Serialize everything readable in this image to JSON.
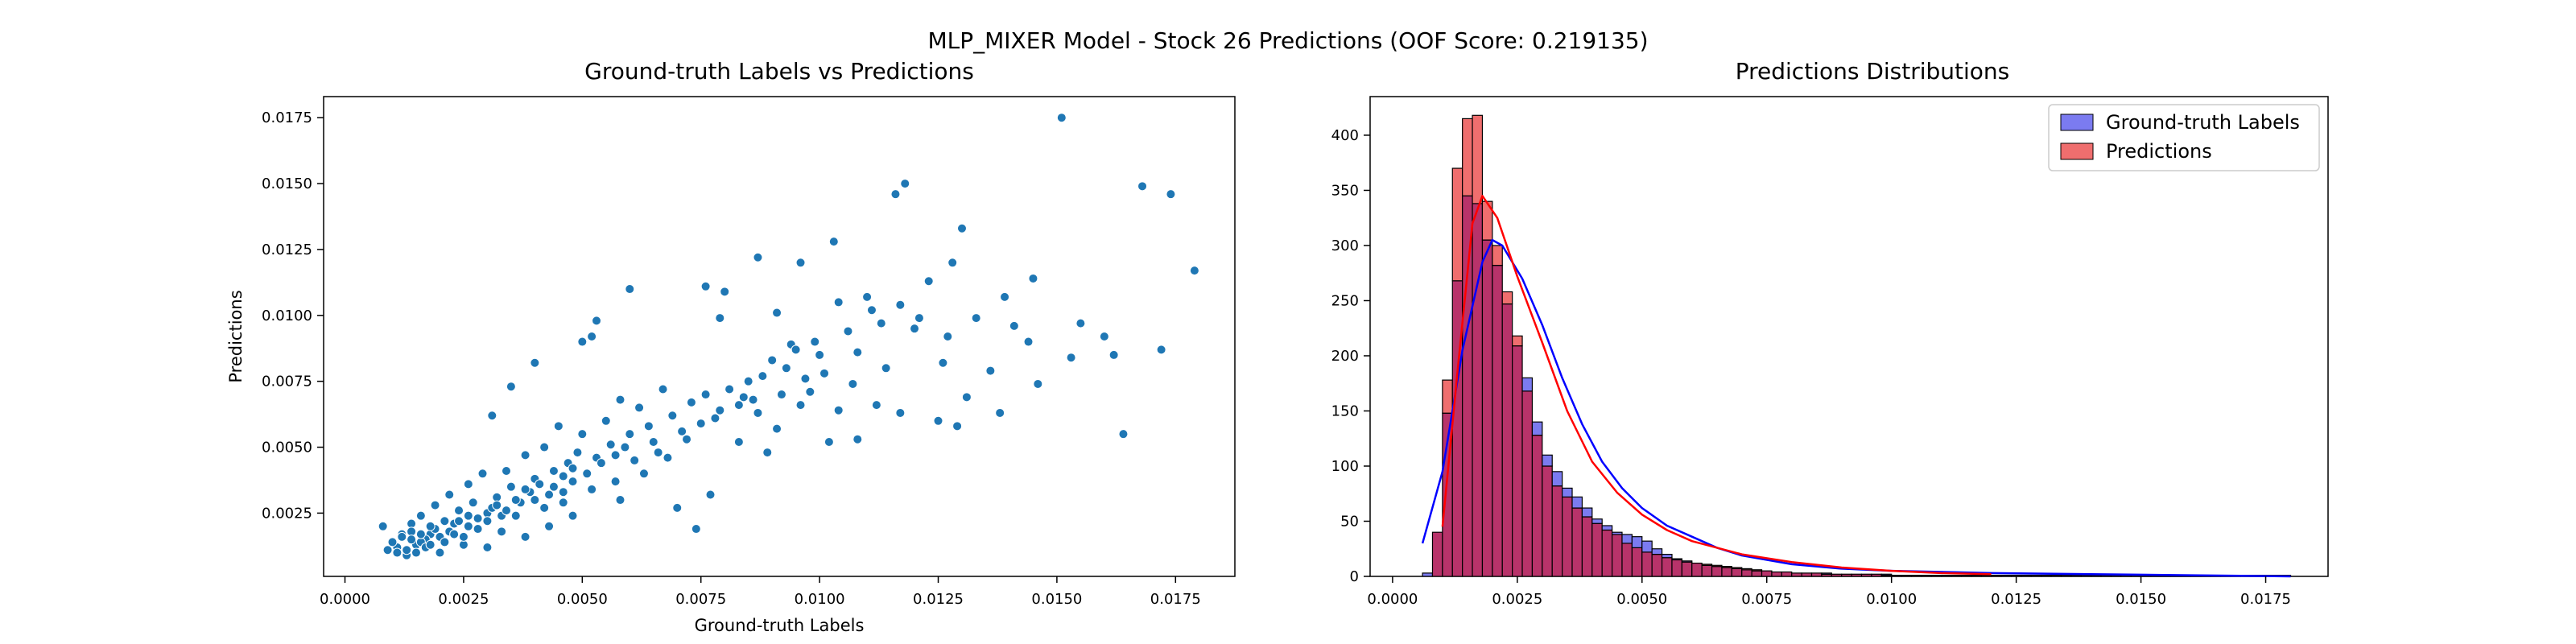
{
  "figure": {
    "suptitle": "MLP_MIXER Model - Stock 26 Predictions (OOF Score: 0.219135)"
  },
  "colors": {
    "scatter": "#1f77b4",
    "scatter_edge": "#ffffff",
    "hist_truth_fill": "#7b7bf0",
    "hist_pred_fill": "#ef6e6e",
    "hist_overlap_fill": "#b8336a",
    "kde_truth": "#0000ff",
    "kde_pred": "#ff0000",
    "bar_edge": "#000000"
  },
  "chart_data": [
    {
      "type": "scatter",
      "title": "Ground-truth Labels vs Predictions",
      "xlabel": "Ground-truth Labels",
      "ylabel": "Predictions",
      "xlim": [
        -0.00045,
        0.01875
      ],
      "ylim": [
        0.0001,
        0.0183
      ],
      "xticks": [
        0.0,
        0.0025,
        0.005,
        0.0075,
        0.01,
        0.0125,
        0.015,
        0.0175
      ],
      "xtick_labels": [
        "0.0000",
        "0.0025",
        "0.0050",
        "0.0075",
        "0.0100",
        "0.0125",
        "0.0150",
        "0.0175"
      ],
      "yticks": [
        0.0025,
        0.005,
        0.0075,
        0.01,
        0.0125,
        0.015,
        0.0175
      ],
      "ytick_labels": [
        "0.0025",
        "0.0050",
        "0.0075",
        "0.0100",
        "0.0125",
        "0.0150",
        "0.0175"
      ],
      "points": [
        [
          0.0151,
          0.0175
        ],
        [
          0.0168,
          0.0149
        ],
        [
          0.0174,
          0.0146
        ],
        [
          0.0179,
          0.0117
        ],
        [
          0.0118,
          0.015
        ],
        [
          0.0116,
          0.0146
        ],
        [
          0.013,
          0.0133
        ],
        [
          0.0128,
          0.012
        ],
        [
          0.0145,
          0.0114
        ],
        [
          0.0103,
          0.0128
        ],
        [
          0.0087,
          0.0122
        ],
        [
          0.0096,
          0.012
        ],
        [
          0.0123,
          0.0113
        ],
        [
          0.006,
          0.011
        ],
        [
          0.0076,
          0.0111
        ],
        [
          0.008,
          0.0109
        ],
        [
          0.011,
          0.0107
        ],
        [
          0.0104,
          0.0105
        ],
        [
          0.0139,
          0.0107
        ],
        [
          0.0117,
          0.0104
        ],
        [
          0.0111,
          0.0102
        ],
        [
          0.0091,
          0.0101
        ],
        [
          0.0121,
          0.0099
        ],
        [
          0.0133,
          0.0099
        ],
        [
          0.0141,
          0.0096
        ],
        [
          0.0155,
          0.0097
        ],
        [
          0.016,
          0.0092
        ],
        [
          0.0144,
          0.009
        ],
        [
          0.0172,
          0.0087
        ],
        [
          0.0153,
          0.0084
        ],
        [
          0.0162,
          0.0085
        ],
        [
          0.0053,
          0.0098
        ],
        [
          0.0052,
          0.0092
        ],
        [
          0.005,
          0.009
        ],
        [
          0.0079,
          0.0099
        ],
        [
          0.0094,
          0.0089
        ],
        [
          0.01,
          0.0085
        ],
        [
          0.0108,
          0.0086
        ],
        [
          0.0114,
          0.008
        ],
        [
          0.0126,
          0.0082
        ],
        [
          0.0136,
          0.0079
        ],
        [
          0.0146,
          0.0074
        ],
        [
          0.0131,
          0.0069
        ],
        [
          0.0112,
          0.0066
        ],
        [
          0.0104,
          0.0064
        ],
        [
          0.0098,
          0.0071
        ],
        [
          0.0086,
          0.0068
        ],
        [
          0.0091,
          0.0057
        ],
        [
          0.0102,
          0.0052
        ],
        [
          0.0108,
          0.0053
        ],
        [
          0.0117,
          0.0063
        ],
        [
          0.0125,
          0.006
        ],
        [
          0.0129,
          0.0058
        ],
        [
          0.0138,
          0.0063
        ],
        [
          0.0164,
          0.0055
        ],
        [
          0.0083,
          0.0052
        ],
        [
          0.0089,
          0.0048
        ],
        [
          0.0077,
          0.0032
        ],
        [
          0.0074,
          0.0019
        ],
        [
          0.007,
          0.0027
        ],
        [
          0.0058,
          0.003
        ],
        [
          0.0048,
          0.0024
        ],
        [
          0.0031,
          0.0062
        ],
        [
          0.0035,
          0.0073
        ],
        [
          0.004,
          0.0082
        ],
        [
          0.0008,
          0.002
        ],
        [
          0.0012,
          0.0017
        ],
        [
          0.0011,
          0.0012
        ],
        [
          0.0009,
          0.0011
        ],
        [
          0.002,
          0.001
        ],
        [
          0.0013,
          0.0009
        ],
        [
          0.0025,
          0.0013
        ],
        [
          0.003,
          0.0012
        ],
        [
          0.0033,
          0.0018
        ],
        [
          0.0038,
          0.0016
        ],
        [
          0.0043,
          0.002
        ],
        [
          0.0046,
          0.0029
        ],
        [
          0.0052,
          0.0034
        ],
        [
          0.0057,
          0.0037
        ],
        [
          0.0063,
          0.004
        ],
        [
          0.0068,
          0.0046
        ],
        [
          0.0072,
          0.0053
        ],
        [
          0.0078,
          0.0061
        ],
        [
          0.0083,
          0.0066
        ],
        [
          0.0088,
          0.0077
        ],
        [
          0.0093,
          0.008
        ],
        [
          0.0097,
          0.0076
        ],
        [
          0.0067,
          0.0072
        ],
        [
          0.0062,
          0.0065
        ],
        [
          0.0058,
          0.0068
        ],
        [
          0.0055,
          0.006
        ],
        [
          0.005,
          0.0055
        ],
        [
          0.0045,
          0.0058
        ],
        [
          0.0042,
          0.005
        ],
        [
          0.0038,
          0.0047
        ],
        [
          0.0034,
          0.0041
        ],
        [
          0.0029,
          0.004
        ],
        [
          0.0026,
          0.0036
        ],
        [
          0.0022,
          0.0032
        ],
        [
          0.0019,
          0.0028
        ],
        [
          0.0016,
          0.0024
        ],
        [
          0.0014,
          0.0021
        ],
        [
          0.0018,
          0.0017
        ],
        [
          0.0021,
          0.0022
        ],
        [
          0.0024,
          0.0026
        ],
        [
          0.0027,
          0.0029
        ],
        [
          0.003,
          0.0025
        ],
        [
          0.0032,
          0.0031
        ],
        [
          0.0035,
          0.0035
        ],
        [
          0.0037,
          0.0029
        ],
        [
          0.004,
          0.0038
        ],
        [
          0.0044,
          0.0041
        ],
        [
          0.0047,
          0.0044
        ],
        [
          0.0049,
          0.0048
        ],
        [
          0.0053,
          0.0046
        ],
        [
          0.0056,
          0.0051
        ],
        [
          0.006,
          0.0055
        ],
        [
          0.0064,
          0.0058
        ],
        [
          0.0069,
          0.0062
        ],
        [
          0.0073,
          0.0067
        ],
        [
          0.0076,
          0.007
        ],
        [
          0.0081,
          0.0072
        ],
        [
          0.0085,
          0.0075
        ],
        [
          0.009,
          0.0083
        ],
        [
          0.0095,
          0.0087
        ],
        [
          0.0099,
          0.009
        ],
        [
          0.0106,
          0.0094
        ],
        [
          0.0113,
          0.0097
        ],
        [
          0.012,
          0.0095
        ],
        [
          0.0127,
          0.0092
        ],
        [
          0.0015,
          0.0013
        ],
        [
          0.0017,
          0.0015
        ],
        [
          0.0019,
          0.0019
        ],
        [
          0.0023,
          0.0021
        ],
        [
          0.0026,
          0.002
        ],
        [
          0.0028,
          0.0023
        ],
        [
          0.0031,
          0.0027
        ],
        [
          0.0033,
          0.0024
        ],
        [
          0.0036,
          0.003
        ],
        [
          0.0039,
          0.0033
        ],
        [
          0.0041,
          0.0036
        ],
        [
          0.0043,
          0.0032
        ],
        [
          0.0046,
          0.0039
        ],
        [
          0.0048,
          0.0042
        ],
        [
          0.0051,
          0.004
        ],
        [
          0.0054,
          0.0044
        ],
        [
          0.0057,
          0.0047
        ],
        [
          0.0059,
          0.005
        ],
        [
          0.0061,
          0.0045
        ],
        [
          0.0065,
          0.0052
        ],
        [
          0.001,
          0.0014
        ],
        [
          0.0012,
          0.0016
        ],
        [
          0.0014,
          0.0018
        ],
        [
          0.0016,
          0.0014
        ],
        [
          0.0018,
          0.002
        ],
        [
          0.002,
          0.0016
        ],
        [
          0.0022,
          0.0018
        ],
        [
          0.0024,
          0.0022
        ],
        [
          0.0026,
          0.0024
        ],
        [
          0.0028,
          0.0019
        ],
        [
          0.003,
          0.0022
        ],
        [
          0.0032,
          0.0028
        ],
        [
          0.0034,
          0.0026
        ],
        [
          0.0036,
          0.0024
        ],
        [
          0.0038,
          0.0034
        ],
        [
          0.004,
          0.003
        ],
        [
          0.0042,
          0.0027
        ],
        [
          0.0044,
          0.0035
        ],
        [
          0.0046,
          0.0033
        ],
        [
          0.0048,
          0.0037
        ],
        [
          0.0066,
          0.0048
        ],
        [
          0.0071,
          0.0056
        ],
        [
          0.0075,
          0.0059
        ],
        [
          0.0079,
          0.0064
        ],
        [
          0.0084,
          0.0069
        ],
        [
          0.0087,
          0.0063
        ],
        [
          0.0092,
          0.007
        ],
        [
          0.0096,
          0.0066
        ],
        [
          0.0101,
          0.0078
        ],
        [
          0.0107,
          0.0074
        ],
        [
          0.0013,
          0.0011
        ],
        [
          0.0015,
          0.001
        ],
        [
          0.0017,
          0.0012
        ],
        [
          0.0011,
          0.001
        ],
        [
          0.0014,
          0.0015
        ],
        [
          0.0016,
          0.0017
        ],
        [
          0.0018,
          0.0013
        ],
        [
          0.0021,
          0.0014
        ],
        [
          0.0023,
          0.0017
        ],
        [
          0.0025,
          0.0016
        ]
      ]
    },
    {
      "type": "histogram",
      "title": "Predictions Distributions",
      "xlim": [
        -0.00045,
        0.01875
      ],
      "ylim": [
        0,
        435
      ],
      "xticks": [
        0.0,
        0.0025,
        0.005,
        0.0075,
        0.01,
        0.0125,
        0.015,
        0.0175
      ],
      "xtick_labels": [
        "0.0000",
        "0.0025",
        "0.0050",
        "0.0075",
        "0.0100",
        "0.0125",
        "0.0150",
        "0.0175"
      ],
      "yticks": [
        0,
        50,
        100,
        150,
        200,
        250,
        300,
        350,
        400
      ],
      "ytick_labels": [
        "0",
        "50",
        "100",
        "150",
        "200",
        "250",
        "300",
        "350",
        "400"
      ],
      "legend_position": "top-right",
      "series": [
        {
          "name": "Ground-truth Labels",
          "bin_start": 0.0006,
          "bin_width": 0.0002,
          "counts": [
            3,
            40,
            148,
            268,
            345,
            338,
            305,
            282,
            247,
            209,
            180,
            140,
            110,
            95,
            80,
            72,
            62,
            52,
            46,
            40,
            38,
            36,
            32,
            25,
            20,
            16,
            14,
            12,
            10,
            9,
            8,
            7,
            6,
            5,
            5,
            4,
            4,
            3,
            3,
            3,
            3,
            2,
            2,
            2,
            2,
            2,
            2,
            1,
            1,
            1,
            1,
            1,
            1,
            1,
            1,
            1,
            1,
            1,
            1,
            1,
            1,
            1,
            1,
            1,
            1,
            1,
            1,
            1,
            1,
            1,
            1,
            1,
            1,
            1,
            1,
            1,
            1,
            1,
            1,
            1,
            1,
            1,
            1,
            1,
            1,
            1,
            1
          ],
          "kde": [
            [
              0.0006,
              30
            ],
            [
              0.001,
              95
            ],
            [
              0.0014,
              205
            ],
            [
              0.0018,
              285
            ],
            [
              0.002,
              305
            ],
            [
              0.0022,
              300
            ],
            [
              0.0026,
              270
            ],
            [
              0.003,
              228
            ],
            [
              0.0034,
              180
            ],
            [
              0.0038,
              138
            ],
            [
              0.0042,
              104
            ],
            [
              0.0046,
              80
            ],
            [
              0.005,
              62
            ],
            [
              0.0055,
              46
            ],
            [
              0.006,
              36
            ],
            [
              0.0065,
              26
            ],
            [
              0.007,
              19
            ],
            [
              0.008,
              11
            ],
            [
              0.009,
              7
            ],
            [
              0.01,
              5
            ],
            [
              0.012,
              3
            ],
            [
              0.014,
              2
            ],
            [
              0.016,
              1
            ],
            [
              0.018,
              0
            ]
          ]
        },
        {
          "name": "Predictions",
          "bin_start": 0.0006,
          "bin_width": 0.0002,
          "counts": [
            0,
            40,
            178,
            370,
            415,
            418,
            340,
            300,
            258,
            218,
            168,
            128,
            100,
            82,
            72,
            62,
            54,
            48,
            42,
            38,
            30,
            26,
            22,
            20,
            17,
            15,
            13,
            12,
            11,
            10,
            9,
            8,
            7,
            6,
            5,
            4,
            4,
            3,
            3,
            3,
            2,
            2,
            2,
            2,
            2,
            2,
            1,
            1,
            1,
            1,
            1,
            1,
            1,
            1,
            1,
            1,
            1,
            1,
            0,
            0,
            0,
            0,
            0,
            0,
            0,
            0,
            0,
            0,
            0,
            0,
            0,
            0,
            0,
            0,
            0,
            0,
            0,
            0,
            0,
            0,
            0,
            0,
            0,
            0,
            0,
            0,
            0
          ],
          "kde": [
            [
              0.001,
              45
            ],
            [
              0.0013,
              185
            ],
            [
              0.0016,
              320
            ],
            [
              0.0018,
              345
            ],
            [
              0.0021,
              325
            ],
            [
              0.0025,
              272
            ],
            [
              0.003,
              212
            ],
            [
              0.0035,
              150
            ],
            [
              0.004,
              104
            ],
            [
              0.0045,
              76
            ],
            [
              0.005,
              56
            ],
            [
              0.0055,
              42
            ],
            [
              0.006,
              32
            ],
            [
              0.007,
              20
            ],
            [
              0.008,
              13
            ],
            [
              0.009,
              8
            ],
            [
              0.01,
              5
            ],
            [
              0.011,
              3
            ],
            [
              0.012,
              2
            ]
          ]
        }
      ]
    }
  ]
}
